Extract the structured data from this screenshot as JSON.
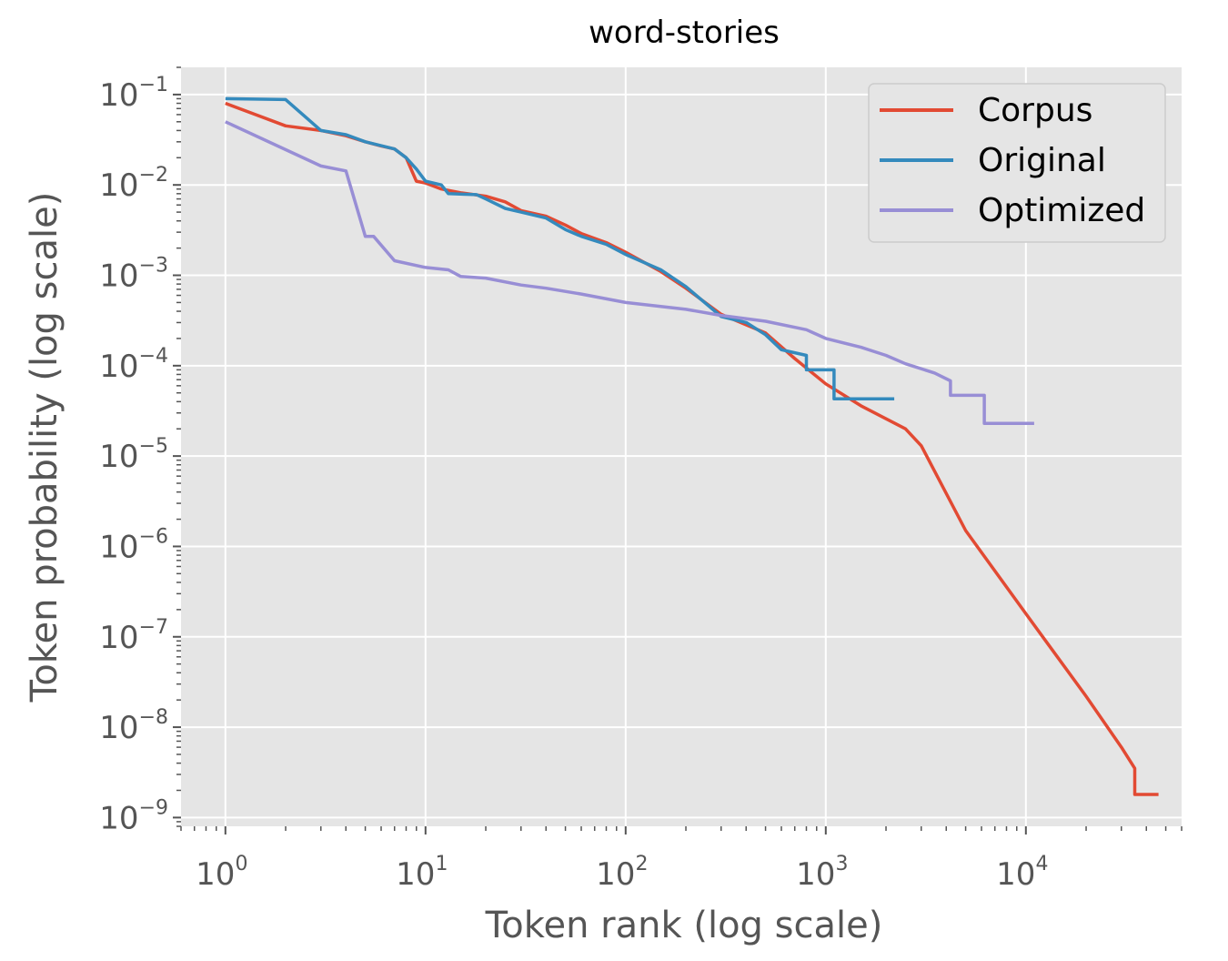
{
  "chart_data": {
    "type": "line",
    "title": "word-stories",
    "xlabel": "Token rank (log scale)",
    "ylabel": "Token probability (log scale)",
    "xscale": "log",
    "yscale": "log",
    "xlim": [
      0.6,
      60000
    ],
    "ylim": [
      8e-10,
      0.2
    ],
    "grid": true,
    "background": "#e5e5e5",
    "legend_position": "top-right",
    "x_ticks": [
      {
        "base": "10",
        "exp": "0",
        "value": 1
      },
      {
        "base": "10",
        "exp": "1",
        "value": 10
      },
      {
        "base": "10",
        "exp": "2",
        "value": 100
      },
      {
        "base": "10",
        "exp": "3",
        "value": 1000
      },
      {
        "base": "10",
        "exp": "4",
        "value": 10000
      }
    ],
    "y_ticks": [
      {
        "base": "10",
        "exp": "−1",
        "value": 0.1
      },
      {
        "base": "10",
        "exp": "−2",
        "value": 0.01
      },
      {
        "base": "10",
        "exp": "−3",
        "value": 0.001
      },
      {
        "base": "10",
        "exp": "−4",
        "value": 0.0001
      },
      {
        "base": "10",
        "exp": "−5",
        "value": 1e-05
      },
      {
        "base": "10",
        "exp": "−6",
        "value": 1e-06
      },
      {
        "base": "10",
        "exp": "−7",
        "value": 1e-07
      },
      {
        "base": "10",
        "exp": "−8",
        "value": 1e-08
      },
      {
        "base": "10",
        "exp": "−9",
        "value": 1e-09
      }
    ],
    "series": [
      {
        "name": "Corpus",
        "color": "#E24A33",
        "points": [
          [
            1,
            0.08
          ],
          [
            2,
            0.045
          ],
          [
            3,
            0.04
          ],
          [
            4,
            0.035
          ],
          [
            5,
            0.03
          ],
          [
            6,
            0.027
          ],
          [
            7,
            0.025
          ],
          [
            8,
            0.02
          ],
          [
            9,
            0.011
          ],
          [
            10,
            0.0105
          ],
          [
            12,
            0.009
          ],
          [
            15,
            0.0082
          ],
          [
            20,
            0.0075
          ],
          [
            25,
            0.0065
          ],
          [
            30,
            0.0052
          ],
          [
            40,
            0.0045
          ],
          [
            50,
            0.0036
          ],
          [
            60,
            0.0029
          ],
          [
            80,
            0.0023
          ],
          [
            100,
            0.0018
          ],
          [
            150,
            0.0011
          ],
          [
            200,
            0.00072
          ],
          [
            300,
            0.00037
          ],
          [
            500,
            0.00023
          ],
          [
            700,
            0.00012
          ],
          [
            1000,
            6.3e-05
          ],
          [
            1500,
            3.6e-05
          ],
          [
            2500,
            2e-05
          ],
          [
            3000,
            1.3e-05
          ],
          [
            5000,
            1.5e-06
          ],
          [
            10000,
            1.8e-07
          ],
          [
            20000,
            2.2e-08
          ],
          [
            30000,
            6e-09
          ],
          [
            35000,
            3.5e-09
          ],
          [
            35000,
            1.8e-09
          ],
          [
            46000,
            1.8e-09
          ]
        ]
      },
      {
        "name": "Original",
        "color": "#348ABD",
        "points": [
          [
            1,
            0.09
          ],
          [
            2,
            0.088
          ],
          [
            3,
            0.04
          ],
          [
            4,
            0.036
          ],
          [
            5,
            0.03
          ],
          [
            7,
            0.025
          ],
          [
            8,
            0.02
          ],
          [
            9,
            0.015
          ],
          [
            10,
            0.011
          ],
          [
            12,
            0.01
          ],
          [
            13,
            0.008
          ],
          [
            18,
            0.0078
          ],
          [
            20,
            0.007
          ],
          [
            25,
            0.0055
          ],
          [
            30,
            0.005
          ],
          [
            40,
            0.0043
          ],
          [
            50,
            0.0032
          ],
          [
            60,
            0.0027
          ],
          [
            80,
            0.0022
          ],
          [
            100,
            0.0017
          ],
          [
            150,
            0.00115
          ],
          [
            200,
            0.00075
          ],
          [
            300,
            0.00035
          ],
          [
            400,
            0.0003
          ],
          [
            500,
            0.00022
          ],
          [
            600,
            0.00015
          ],
          [
            800,
            0.00013
          ],
          [
            800,
            9e-05
          ],
          [
            1100,
            9e-05
          ],
          [
            1100,
            4.3e-05
          ],
          [
            2200,
            4.3e-05
          ]
        ]
      },
      {
        "name": "Optimized",
        "color": "#988ED5",
        "points": [
          [
            1,
            0.05
          ],
          [
            3,
            0.0162
          ],
          [
            4,
            0.0143
          ],
          [
            5,
            0.0027
          ],
          [
            5.5,
            0.0027
          ],
          [
            7,
            0.00145
          ],
          [
            10,
            0.00122
          ],
          [
            13,
            0.00115
          ],
          [
            15,
            0.00097
          ],
          [
            20,
            0.00093
          ],
          [
            30,
            0.00078
          ],
          [
            40,
            0.00072
          ],
          [
            60,
            0.00062
          ],
          [
            100,
            0.0005
          ],
          [
            200,
            0.00042
          ],
          [
            300,
            0.00036
          ],
          [
            500,
            0.00031
          ],
          [
            800,
            0.00025
          ],
          [
            1000,
            0.0002
          ],
          [
            1500,
            0.00016
          ],
          [
            2000,
            0.00013
          ],
          [
            2500,
            0.000105
          ],
          [
            3500,
            8.3e-05
          ],
          [
            4200,
            6.8e-05
          ],
          [
            4200,
            4.7e-05
          ],
          [
            6200,
            4.7e-05
          ],
          [
            6200,
            2.3e-05
          ],
          [
            11000,
            2.3e-05
          ]
        ]
      }
    ]
  }
}
